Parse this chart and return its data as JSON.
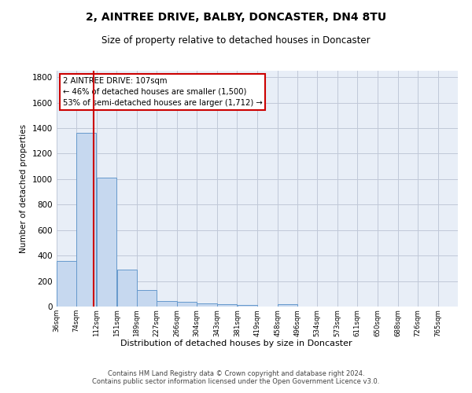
{
  "title": "2, AINTREE DRIVE, BALBY, DONCASTER, DN4 8TU",
  "subtitle": "Size of property relative to detached houses in Doncaster",
  "xlabel": "Distribution of detached houses by size in Doncaster",
  "ylabel": "Number of detached properties",
  "bin_edges": [
    36,
    74,
    112,
    151,
    189,
    227,
    266,
    304,
    343,
    381,
    419,
    458,
    496,
    534,
    573,
    611,
    650,
    688,
    726,
    765,
    803
  ],
  "bar_heights": [
    355,
    1365,
    1012,
    290,
    128,
    42,
    35,
    22,
    18,
    15,
    0,
    18,
    0,
    0,
    0,
    0,
    0,
    0,
    0,
    0
  ],
  "bar_color": "#c6d8ef",
  "bar_edge_color": "#6699cc",
  "red_line_x": 107,
  "annotation_line1": "2 AINTREE DRIVE: 107sqm",
  "annotation_line2": "← 46% of detached houses are smaller (1,500)",
  "annotation_line3": "53% of semi-detached houses are larger (1,712) →",
  "annotation_box_color": "#ffffff",
  "annotation_border_color": "#cc0000",
  "ylim": [
    0,
    1850
  ],
  "yticks": [
    0,
    200,
    400,
    600,
    800,
    1000,
    1200,
    1400,
    1600,
    1800
  ],
  "footer_text": "Contains HM Land Registry data © Crown copyright and database right 2024.\nContains public sector information licensed under the Open Government Licence v3.0.",
  "background_color": "#ffffff",
  "plot_bg_color": "#e8eef7",
  "grid_color": "#c0c8d8"
}
